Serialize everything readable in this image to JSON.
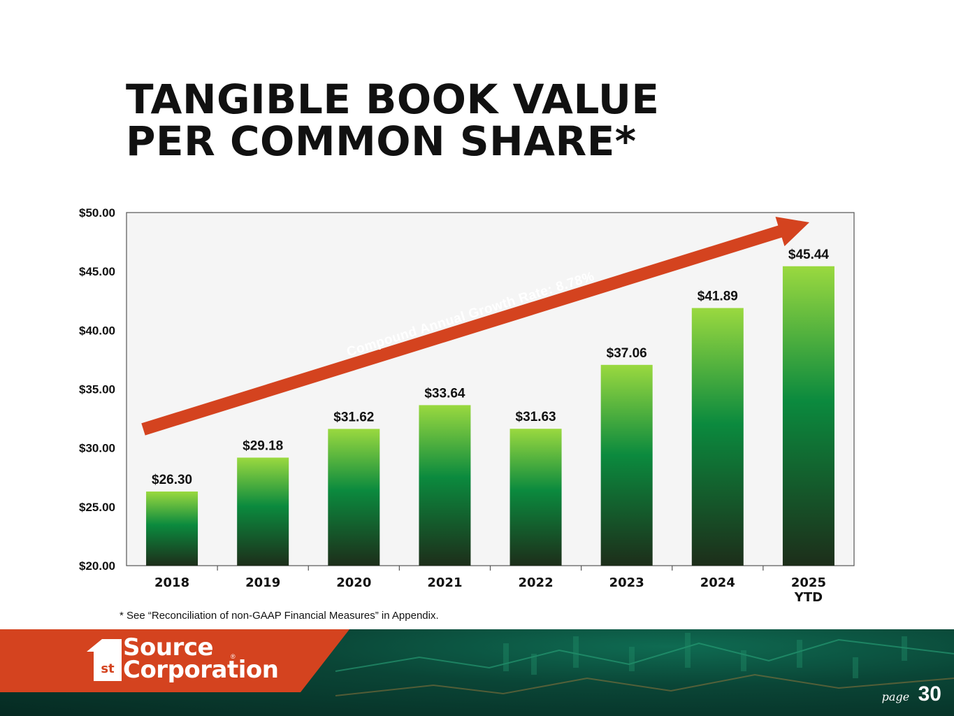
{
  "title": {
    "line1": "TANGIBLE BOOK VALUE",
    "line2": "PER COMMON SHARE*"
  },
  "chart_data": {
    "type": "bar",
    "categories": [
      "2018",
      "2019",
      "2020",
      "2021",
      "2022",
      "2023",
      "2024",
      "2025\nYTD"
    ],
    "values": [
      26.3,
      29.18,
      31.62,
      33.64,
      31.63,
      37.06,
      41.89,
      45.44
    ],
    "value_labels": [
      "$26.30",
      "$29.18",
      "$31.62",
      "$33.64",
      "$31.63",
      "$37.06",
      "$41.89",
      "$45.44"
    ],
    "yticks": [
      "$20.00",
      "$25.00",
      "$30.00",
      "$35.00",
      "$40.00",
      "$45.00",
      "$50.00"
    ],
    "ylim": [
      20,
      50
    ],
    "annotation": "Compound Annual Growth Rate: 8.78%",
    "grid": false,
    "colors": {
      "bar_top": "#9ad93f",
      "bar_mid": "#0b8a3e",
      "bar_bottom": "#1d2e1a",
      "arrow": "#d4431f",
      "plot_bg": "#f5f5f5"
    }
  },
  "footnote": "* See “Reconciliation of non-GAAP Financial Measures” in Appendix.",
  "footer": {
    "logo_line1": "Source",
    "logo_line2": "Corporation",
    "logo_mark": "1st",
    "logo_reg": "®",
    "page_label": "page",
    "page_number": "30",
    "brand_color": "#d4431f"
  }
}
